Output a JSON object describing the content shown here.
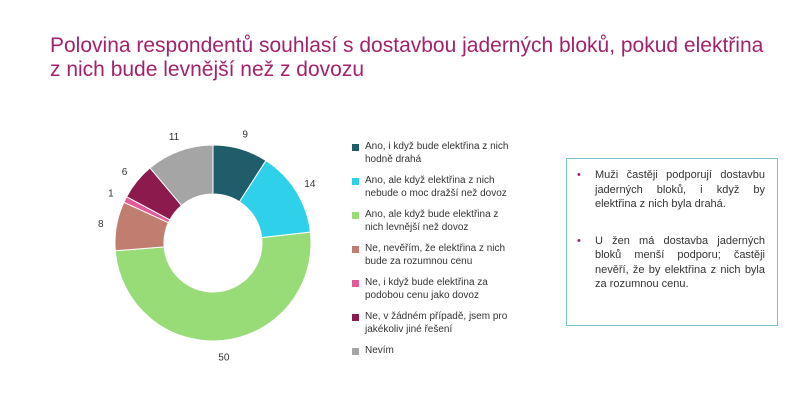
{
  "title_lines": [
    "Polovina respondentů souhlasí s dostavbou jaderných bloků, pokud elektřina",
    "z nich bude levnější než z dovozu"
  ],
  "chart_data": {
    "type": "pie",
    "donut": true,
    "title": "",
    "slices": [
      {
        "label": "Ano, i když bude elektřina z nich hodně drahá",
        "value": 9,
        "color": "#1f5d6b"
      },
      {
        "label": "Ano, ale když elektřina z nich nebude o moc dražší než dovoz",
        "value": 14,
        "color": "#2fd0ea"
      },
      {
        "label": "Ano, ale když bude elektřina z nich levnější než dovoz",
        "value": 50,
        "color": "#98dc78"
      },
      {
        "label": "Ne, nevěřím, že elektřina z nich bude za rozumnou cenu",
        "value": 8,
        "color": "#c17d6f"
      },
      {
        "label": "Ne, i když bude elektřina za podobou cenu jako dovoz",
        "value": 1,
        "color": "#e35a9a"
      },
      {
        "label": "Ne, v žádném případě, jsem pro jakékoliv jiné řešení",
        "value": 6,
        "color": "#8c1a4c"
      },
      {
        "label": "Nevím",
        "value": 11,
        "color": "#a5a5a5"
      }
    ],
    "legend_position": "right"
  },
  "legend_lines": [
    [
      "Ano, i když bude elektřina z nich",
      "hodně drahá"
    ],
    [
      "Ano, ale když elektřina z nich",
      "nebude o moc dražší než dovoz"
    ],
    [
      "Ano, ale když bude elektřina z",
      "nich levnější než dovoz"
    ],
    [
      "Ne, nevěřím, že elektřina z nich",
      "bude za rozumnou cenu"
    ],
    [
      "Ne, i když bude elektřina za",
      "podobou cenu jako dovoz"
    ],
    [
      "Ne, v žádném případě, jsem pro",
      "jakékoliv jiné řešení"
    ],
    [
      "Nevím"
    ]
  ],
  "notes": [
    {
      "bullet": "•",
      "text": "Muži častěji podporují dostavbu jaderných bloků, i když by elektřina z nich byla drahá."
    },
    {
      "bullet": "•",
      "text": "U žen má dostavba jaderných bloků menší podporu; častěji nevěří, že by elektřina z nich byla za rozumnou cenu."
    }
  ]
}
